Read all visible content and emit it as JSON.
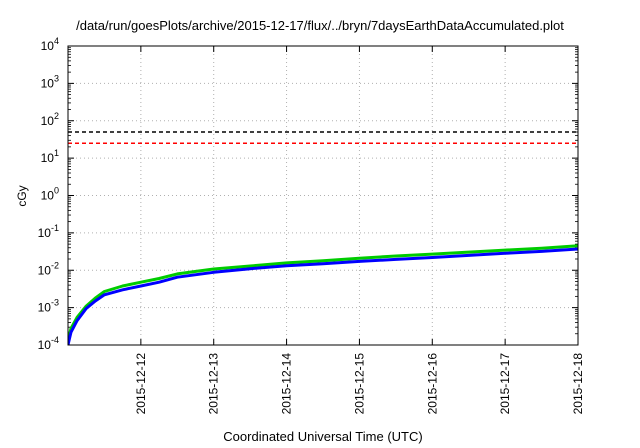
{
  "chart_data": {
    "type": "line",
    "title": "/data/run/goesPlots/archive/2015-12-17/flux/../bryn/7daysEarthDataAccumulated.plot",
    "xlabel": "Coordinated Universal Time (UTC)",
    "ylabel": "cGy",
    "yscale": "log",
    "ylim": [
      0.0001,
      10000
    ],
    "xlim": [
      "2015-12-11",
      "2015-12-18"
    ],
    "grid": true,
    "y_ticks": [
      {
        "base": "10",
        "exp": "-4"
      },
      {
        "base": "10",
        "exp": "-3"
      },
      {
        "base": "10",
        "exp": "-2"
      },
      {
        "base": "10",
        "exp": "-1"
      },
      {
        "base": "10",
        "exp": "0"
      },
      {
        "base": "10",
        "exp": "1"
      },
      {
        "base": "10",
        "exp": "2"
      },
      {
        "base": "10",
        "exp": "3"
      },
      {
        "base": "10",
        "exp": "4"
      }
    ],
    "x_ticks": [
      "2015-12-12",
      "2015-12-13",
      "2015-12-14",
      "2015-12-15",
      "2015-12-16",
      "2015-12-17",
      "2015-12-18"
    ],
    "hlines": [
      {
        "y": 50,
        "color": "#000000",
        "style": "dashed"
      },
      {
        "y": 25,
        "color": "#ff0000",
        "style": "dashed"
      }
    ],
    "x_dates": [
      "2015-12-11",
      "2015-12-11 00:30",
      "2015-12-11 01:00",
      "2015-12-11 03:00",
      "2015-12-11 06:00",
      "2015-12-11 09:00",
      "2015-12-11 12:00",
      "2015-12-11 18:00",
      "2015-12-12",
      "2015-12-12 06:00",
      "2015-12-12 12:00",
      "2015-12-13",
      "2015-12-13 12:00",
      "2015-12-14",
      "2015-12-14 12:00",
      "2015-12-15",
      "2015-12-15 12:00",
      "2015-12-16",
      "2015-12-16 12:00",
      "2015-12-17",
      "2015-12-17 12:00",
      "2015-12-18"
    ],
    "series": [
      {
        "color": "#00cc00",
        "values": [
          0.00013,
          0.00019,
          0.00028,
          0.00055,
          0.0011,
          0.0018,
          0.0027,
          0.0038,
          0.0048,
          0.006,
          0.008,
          0.0108,
          0.013,
          0.0157,
          0.018,
          0.021,
          0.024,
          0.027,
          0.0305,
          0.0345,
          0.039,
          0.045
        ]
      },
      {
        "color": "#0000ff",
        "values": [
          0.0001,
          0.00015,
          0.00022,
          0.00045,
          0.00095,
          0.0015,
          0.0022,
          0.003,
          0.0038,
          0.0048,
          0.0065,
          0.0088,
          0.011,
          0.0132,
          0.015,
          0.0172,
          0.0195,
          0.022,
          0.025,
          0.0285,
          0.032,
          0.037
        ]
      }
    ]
  }
}
